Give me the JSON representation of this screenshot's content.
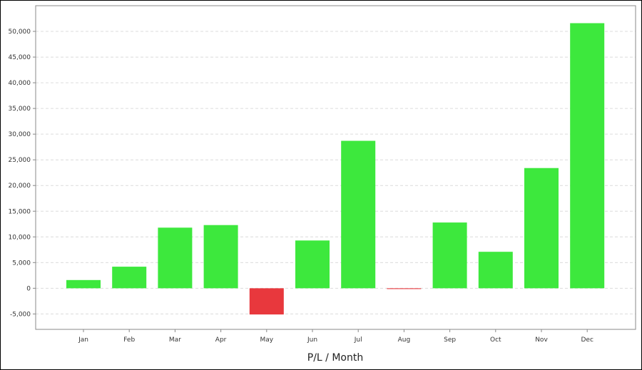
{
  "chart_data": {
    "type": "bar",
    "title": "",
    "xlabel": "P/L / Month",
    "ylabel": "",
    "categories": [
      "Jan",
      "Feb",
      "Mar",
      "Apr",
      "May",
      "Jun",
      "Jul",
      "Aug",
      "Sep",
      "Oct",
      "Nov",
      "Dec"
    ],
    "values": [
      1600,
      4200,
      11800,
      12300,
      -5100,
      9300,
      28700,
      -150,
      12800,
      7100,
      23400,
      51600
    ],
    "ylim": [
      -8000,
      55000
    ],
    "yticks": [
      -5000,
      0,
      5000,
      10000,
      15000,
      20000,
      25000,
      30000,
      35000,
      40000,
      45000,
      50000
    ],
    "ytick_labels": [
      "-5,000",
      "0",
      "5,000",
      "10,000",
      "15,000",
      "20,000",
      "25,000",
      "30,000",
      "35,000",
      "40,000",
      "45,000",
      "50,000"
    ],
    "grid": true,
    "legend": "none",
    "colors": {
      "positive": "#3de83d",
      "negative": "#e8383d",
      "grid": "#dcdcdc",
      "axis": "#888888"
    }
  }
}
